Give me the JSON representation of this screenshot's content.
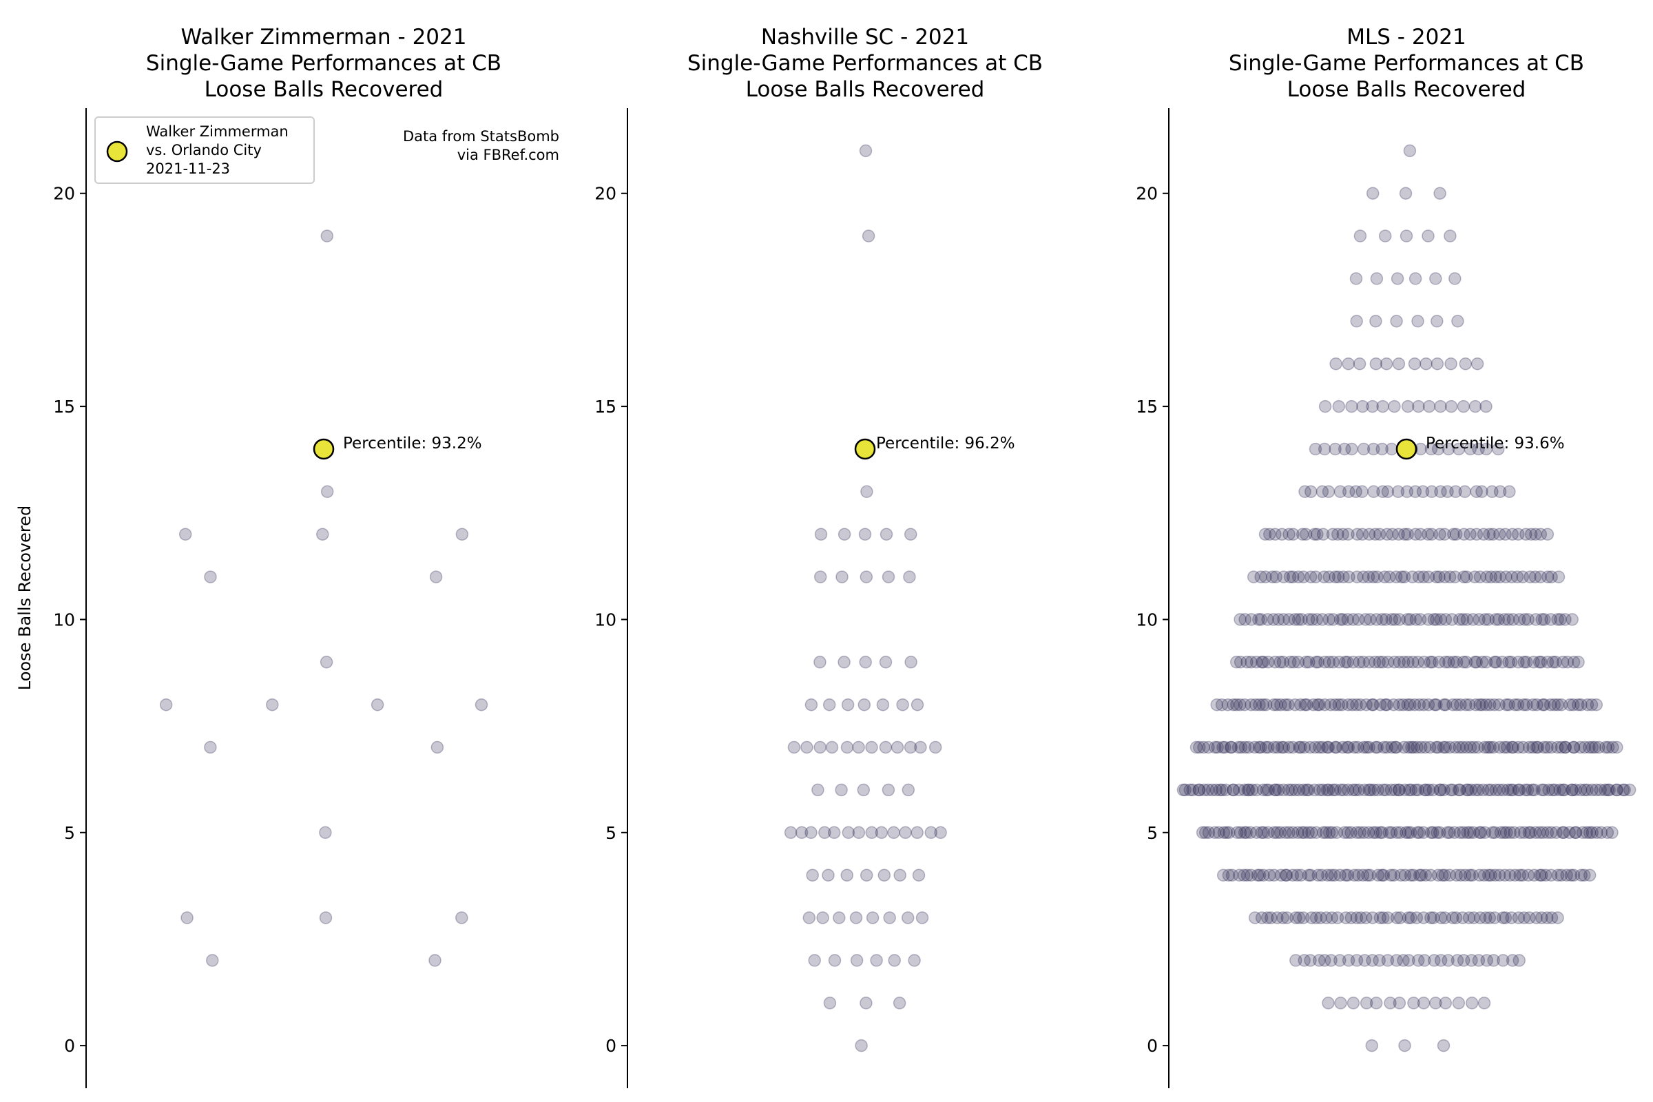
{
  "figure": {
    "ylabel": "Loose Balls Recovered",
    "source_note_lines": [
      "Data from StatsBomb",
      "via FBRef.com"
    ]
  },
  "colors": {
    "swarm": "#282550",
    "highlight": "#e8e43a",
    "highlight_edge": "#000000",
    "axis": "#000000"
  },
  "legend": {
    "position": "upper-left",
    "lines": [
      "Walker Zimmerman",
      "vs. Orlando City",
      "2021-11-23"
    ]
  },
  "chart_data": [
    {
      "type": "scatter",
      "title_lines": [
        "Walker Zimmerman - 2021",
        "Single-Game Performances at CB",
        "Loose Balls Recovered"
      ],
      "ylim": [
        -1,
        22
      ],
      "yticks": [
        0,
        5,
        10,
        15,
        20
      ],
      "highlight": {
        "value": 14,
        "label": "Percentile: 93.2%"
      },
      "counts": {
        "2": 2,
        "3": 3,
        "5": 1,
        "7": 2,
        "8": 4,
        "9": 1,
        "11": 2,
        "12": 3,
        "13": 1,
        "19": 1
      }
    },
    {
      "type": "scatter",
      "title_lines": [
        "Nashville SC - 2021",
        "Single-Game Performances at CB",
        "Loose Balls Recovered"
      ],
      "ylim": [
        -1,
        22
      ],
      "yticks": [
        0,
        5,
        10,
        15,
        20
      ],
      "highlight": {
        "value": 14,
        "label": "Percentile: 96.2%"
      },
      "counts": {
        "0": 1,
        "1": 3,
        "2": 6,
        "3": 8,
        "4": 7,
        "5": 14,
        "6": 5,
        "7": 12,
        "8": 7,
        "9": 5,
        "11": 5,
        "12": 5,
        "13": 1,
        "19": 1,
        "21": 1
      }
    },
    {
      "type": "scatter",
      "title_lines": [
        "MLS - 2021",
        "Single-Game Performances at CB",
        "Loose Balls Recovered"
      ],
      "ylim": [
        -1,
        22
      ],
      "yticks": [
        0,
        5,
        10,
        15,
        20
      ],
      "highlight": {
        "value": 14,
        "label": "Percentile: 93.6%"
      },
      "counts": {
        "0": 3,
        "1": 14,
        "2": 30,
        "3": 55,
        "4": 80,
        "5": 100,
        "6": 120,
        "7": 105,
        "8": 85,
        "9": 70,
        "10": 65,
        "11": 55,
        "12": 48,
        "13": 25,
        "14": 20,
        "15": 15,
        "16": 12,
        "17": 6,
        "18": 6,
        "19": 5,
        "20": 3,
        "21": 1
      }
    }
  ]
}
